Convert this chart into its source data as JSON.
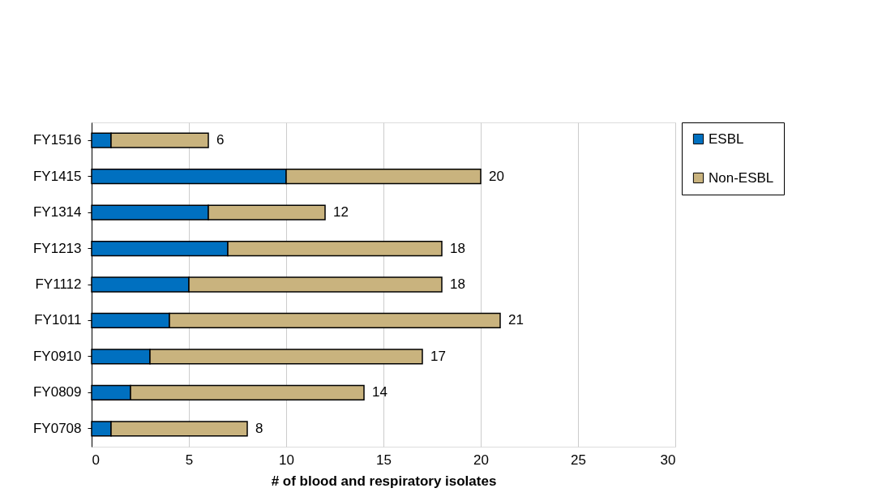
{
  "chart_data": {
    "type": "bar",
    "orientation": "horizontal",
    "stacked": true,
    "xlabel": "# of blood and respiratory isolates",
    "categories": [
      "FY1516",
      "FY1415",
      "FY1314",
      "FY1213",
      "FY1112",
      "FY1011",
      "FY0910",
      "FY0809",
      "FY0708"
    ],
    "series": [
      {
        "name": "ESBL",
        "color": "#0070c0",
        "values": [
          1,
          10,
          6,
          7,
          5,
          4,
          3,
          2,
          1
        ]
      },
      {
        "name": "Non-ESBL",
        "color": "#c9b37e",
        "values": [
          5,
          10,
          6,
          11,
          13,
          17,
          14,
          12,
          7
        ]
      }
    ],
    "totals": [
      "6",
      "20",
      "12",
      "18",
      "18",
      "21",
      "17",
      "14",
      "8"
    ],
    "xlim": [
      0,
      30
    ],
    "xticks": [
      0,
      5,
      10,
      15,
      20,
      25,
      30
    ],
    "grid": "x",
    "legend": "right"
  }
}
